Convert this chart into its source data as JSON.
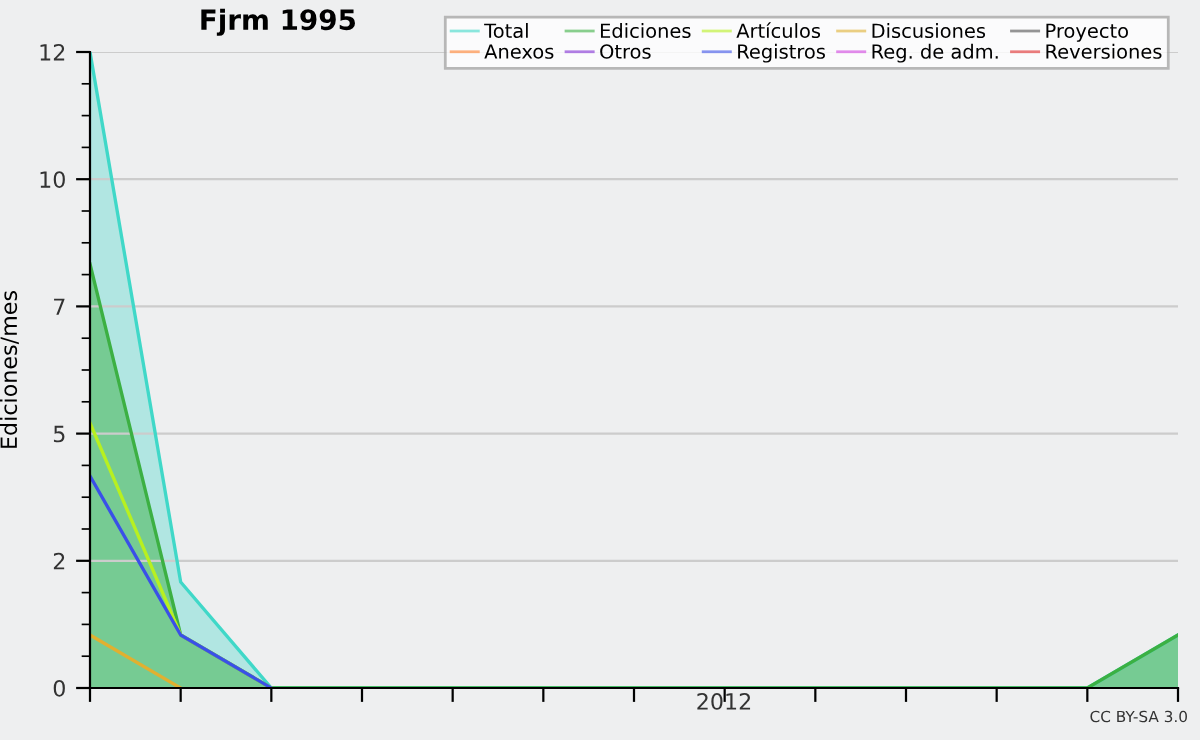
{
  "chart_data": {
    "type": "line",
    "title": "Fjrm 1995",
    "ylabel": "Ediciones/mes",
    "categories": [
      null,
      null,
      null,
      null,
      null,
      null,
      null,
      null,
      null,
      null,
      null,
      null,
      null
    ],
    "series": [
      {
        "name": "Total",
        "type": "area",
        "color": "#40d8c8",
        "values": [
          12,
          2,
          0,
          0,
          0,
          0,
          0,
          0,
          0,
          0,
          0,
          0,
          1
        ]
      },
      {
        "name": "Ediciones",
        "type": "area",
        "color": "#3cb043",
        "values": [
          8,
          1,
          0,
          0,
          0,
          0,
          0,
          0,
          0,
          0,
          0,
          0,
          1
        ]
      },
      {
        "name": "Artículos",
        "color": "#b8f020",
        "values": [
          5,
          1,
          0,
          null,
          null,
          null,
          null,
          null,
          null,
          null,
          null,
          null,
          null
        ]
      },
      {
        "name": "Discusiones",
        "color": "#e0b030",
        "values": [
          1,
          0,
          null,
          null,
          null,
          null,
          null,
          null,
          null,
          null,
          null,
          null,
          null
        ]
      },
      {
        "name": "Proyecto",
        "color": "#505050",
        "values": [
          null,
          null,
          null,
          null,
          null,
          null,
          null,
          null,
          null,
          null,
          null,
          null,
          null
        ]
      },
      {
        "name": "Anexos",
        "color": "#ff7f2a",
        "values": [
          null,
          null,
          null,
          null,
          null,
          null,
          null,
          null,
          null,
          null,
          null,
          null,
          null
        ]
      },
      {
        "name": "Otros",
        "color": "#7f2ad4",
        "values": [
          null,
          null,
          null,
          null,
          null,
          null,
          null,
          null,
          null,
          null,
          null,
          null,
          null
        ]
      },
      {
        "name": "Registros",
        "color": "#3a50e8",
        "values": [
          4,
          1,
          0,
          null,
          null,
          null,
          null,
          null,
          null,
          null,
          null,
          null,
          null
        ]
      },
      {
        "name": "Reg. de adm.",
        "color": "#d040e0",
        "values": [
          null,
          null,
          null,
          null,
          null,
          null,
          null,
          null,
          null,
          null,
          null,
          null,
          null
        ]
      },
      {
        "name": "Reversiones",
        "color": "#e02828",
        "values": [
          null,
          null,
          null,
          null,
          null,
          null,
          null,
          null,
          null,
          null,
          null,
          null,
          null
        ]
      }
    ],
    "ylim": [
      0,
      12
    ],
    "yticks": [
      {
        "value": 0,
        "label": "0"
      },
      {
        "value": 0.6,
        "label": null
      },
      {
        "value": 1.2,
        "label": null
      },
      {
        "value": 1.8,
        "label": null
      },
      {
        "value": 2.4,
        "label": "2"
      },
      {
        "value": 3.0,
        "label": null
      },
      {
        "value": 3.6,
        "label": null
      },
      {
        "value": 4.2,
        "label": null
      },
      {
        "value": 4.8,
        "label": "5"
      },
      {
        "value": 5.4,
        "label": null
      },
      {
        "value": 6.0,
        "label": null
      },
      {
        "value": 6.6,
        "label": null
      },
      {
        "value": 7.2,
        "label": "7"
      },
      {
        "value": 7.8,
        "label": null
      },
      {
        "value": 8.4,
        "label": null
      },
      {
        "value": 9.0,
        "label": null
      },
      {
        "value": 9.6,
        "label": "10"
      },
      {
        "value": 10.2,
        "label": null
      },
      {
        "value": 10.8,
        "label": null
      },
      {
        "value": 11.4,
        "label": null
      },
      {
        "value": 12,
        "label": "12"
      }
    ],
    "grid": "y",
    "legend": "top right",
    "annotations": [
      "2012",
      "CC BY-SA 3.0"
    ]
  }
}
